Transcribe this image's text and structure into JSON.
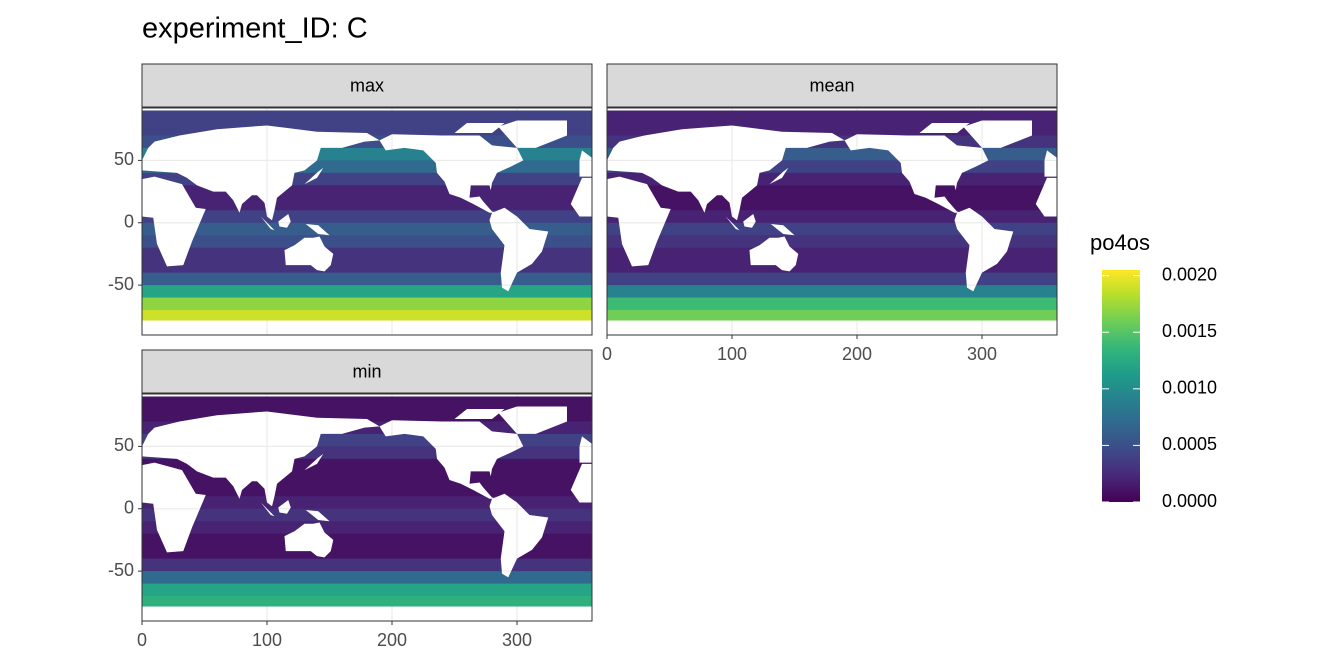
{
  "chart_data": {
    "type": "raster",
    "title": "experiment_ID: C",
    "colormap": [
      "#440154",
      "#482878",
      "#3e4a89",
      "#31688e",
      "#26828e",
      "#1f9e89",
      "#35b779",
      "#6ece58",
      "#b5de2b",
      "#fde725"
    ],
    "lat_bins": [
      90,
      80,
      70,
      60,
      50,
      40,
      30,
      20,
      10,
      0,
      -10,
      -20,
      -30,
      -40,
      -50,
      -60,
      -70,
      -78
    ],
    "facets": [
      {
        "label": "max",
        "values": [
          0.0004,
          0.0004,
          0.0005,
          0.0009,
          0.0007,
          0.0004,
          0.0002,
          0.0002,
          0.0004,
          0.0006,
          0.0005,
          0.0003,
          0.0003,
          0.0006,
          0.0012,
          0.0017,
          0.0019
        ]
      },
      {
        "label": "mean",
        "values": [
          0.0002,
          0.0002,
          0.0003,
          0.0006,
          0.0004,
          0.0002,
          0.0001,
          0.0001,
          0.0002,
          0.0004,
          0.0003,
          0.0002,
          0.0002,
          0.0004,
          0.0009,
          0.0014,
          0.0016
        ]
      },
      {
        "label": "min",
        "values": [
          0.0001,
          0.0001,
          0.0002,
          0.0004,
          0.0003,
          0.0001,
          0.0001,
          0.0001,
          0.0002,
          0.0003,
          0.0002,
          0.0001,
          0.0001,
          0.0003,
          0.0007,
          0.0012,
          0.0013
        ]
      }
    ],
    "xlim": [
      0,
      360
    ],
    "ylim": [
      -90,
      92
    ],
    "xticks": [
      0,
      100,
      200,
      300
    ],
    "yticks": [
      -50,
      0,
      50
    ],
    "grid": true,
    "legend": {
      "title": "po4os",
      "lim": [
        0,
        0.00205
      ],
      "ticks": [
        {
          "value": 0,
          "label": "0.0000"
        },
        {
          "value": 0.0005,
          "label": "0.0005"
        },
        {
          "value": 0.001,
          "label": "0.0010"
        },
        {
          "value": 0.0015,
          "label": "0.0015"
        },
        {
          "value": 0.002,
          "label": "0.0020"
        }
      ]
    }
  }
}
